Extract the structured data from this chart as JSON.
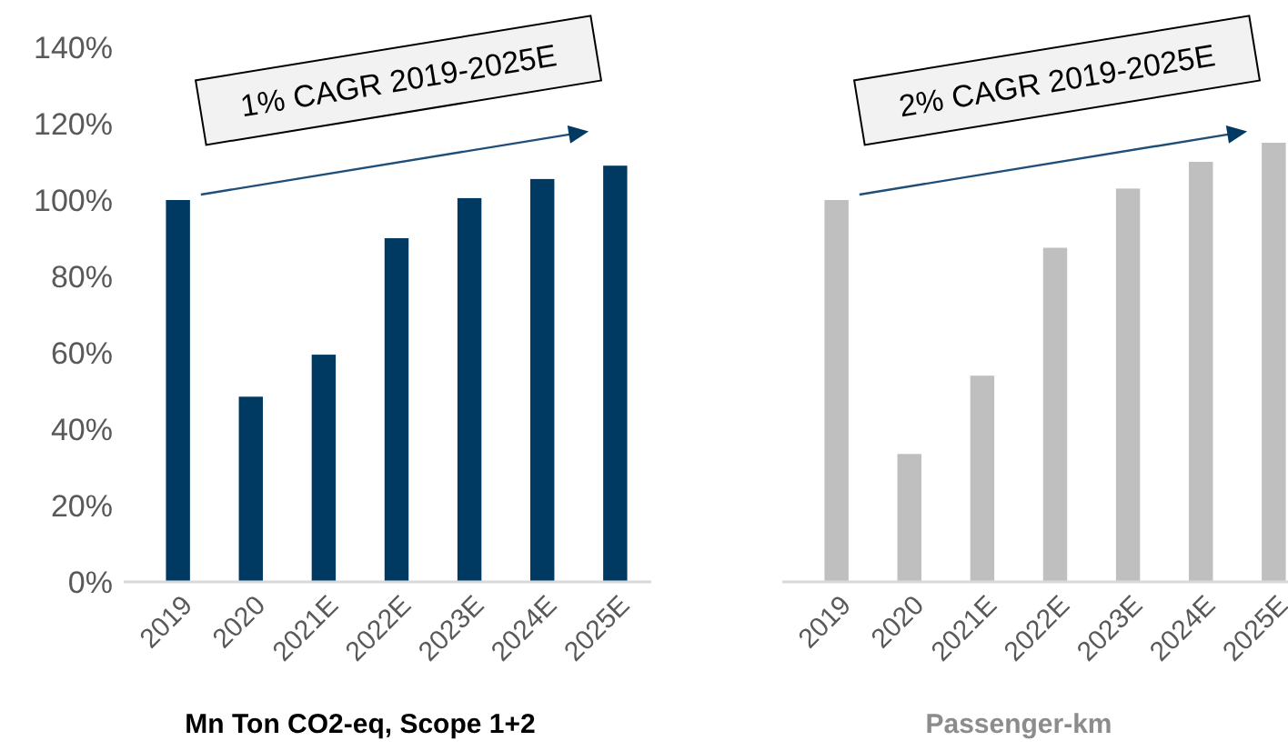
{
  "chart_data": [
    {
      "type": "bar",
      "xlabel": "Mn Ton CO2-eq, Scope 1+2",
      "categories": [
        "2019",
        "2020",
        "2021E",
        "2022E",
        "2023E",
        "2024E",
        "2025E"
      ],
      "values": [
        100,
        48.5,
        59.5,
        90,
        100.5,
        105.5,
        109
      ],
      "color": "#003a63",
      "ylim": [
        0,
        140
      ],
      "yticks": [
        {
          "value": 0,
          "label": "0%"
        },
        {
          "value": 20,
          "label": "20%"
        },
        {
          "value": 40,
          "label": "40%"
        },
        {
          "value": 60,
          "label": "60%"
        },
        {
          "value": 80,
          "label": "80%"
        },
        {
          "value": 100,
          "label": "100%"
        },
        {
          "value": 120,
          "label": "120%"
        },
        {
          "value": 140,
          "label": "140%"
        }
      ],
      "annotations": [
        "1% CAGR 2019-2025E"
      ]
    },
    {
      "type": "bar",
      "xlabel": "Passenger-km",
      "categories": [
        "2019",
        "2020",
        "2021E",
        "2022E",
        "2023E",
        "2024E",
        "2025E"
      ],
      "values": [
        100,
        33.5,
        54,
        87.5,
        103,
        110,
        115
      ],
      "color": "#bfbfbf",
      "ylim": [
        0,
        140
      ],
      "tick_labels": "x",
      "annotations": [
        "2% CAGR 2019-2025E"
      ]
    }
  ]
}
